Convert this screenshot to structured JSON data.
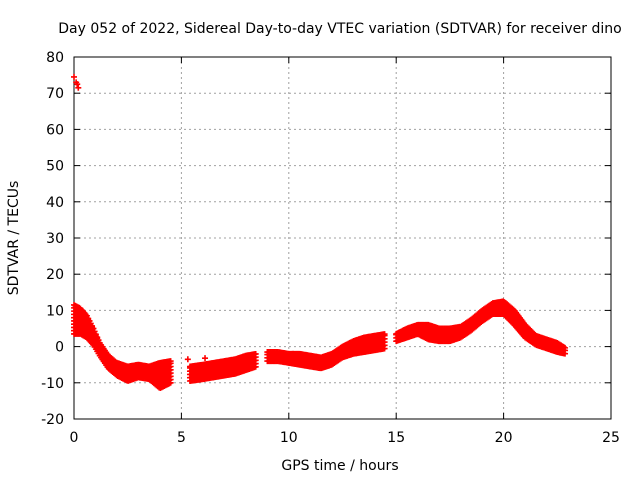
{
  "chart_data": {
    "type": "scatter",
    "title": "Day 052 of 2022, Sidereal Day-to-day VTEC variation (SDTVAR) for receiver dino",
    "xlabel": "GPS time / hours",
    "ylabel": "SDTVAR / TECUs",
    "xlim": [
      0,
      25
    ],
    "ylim": [
      -20,
      80
    ],
    "x_ticks": [
      "0",
      "5",
      "10",
      "15",
      "20",
      "25"
    ],
    "y_ticks": [
      "-20",
      "-10",
      "0",
      "10",
      "20",
      "30",
      "40",
      "50",
      "60",
      "70",
      "80"
    ],
    "grid": true,
    "marker": "+",
    "series": [
      {
        "name": "SDTVAR",
        "color": "#ff0000",
        "outliers": [
          [
            0.0,
            74.5
          ],
          [
            0.1,
            73.0
          ],
          [
            0.2,
            71.5
          ],
          [
            0.15,
            72.5
          ],
          [
            5.3,
            -3.5
          ],
          [
            6.1,
            -3.2
          ]
        ],
        "bands": [
          {
            "x": [
              0.0,
              0.3,
              0.6,
              0.9,
              1.2,
              1.6,
              2.0,
              2.5,
              3.0,
              3.5,
              4.0,
              4.5
            ],
            "top": [
              11.5,
              10.5,
              8.5,
              5.0,
              1.0,
              -2.5,
              -4.5,
              -5.5,
              -5.0,
              -5.5,
              -4.5,
              -4.0
            ],
            "bottom": [
              3.5,
              3.5,
              2.5,
              0.5,
              -2.5,
              -6.0,
              -8.0,
              -9.5,
              -8.5,
              -9.0,
              -11.5,
              -10.0
            ]
          },
          {
            "x": [
              5.4,
              6.0,
              6.5,
              7.0,
              7.5,
              8.0,
              8.5
            ],
            "top": [
              -5.5,
              -5.0,
              -4.5,
              -4.0,
              -3.5,
              -2.5,
              -2.0
            ],
            "bottom": [
              -9.5,
              -9.0,
              -8.5,
              -8.0,
              -7.5,
              -6.5,
              -5.5
            ]
          },
          {
            "x": [
              9.0,
              9.5,
              10.0,
              10.5,
              11.0,
              11.5,
              12.0,
              12.5,
              13.0,
              13.5,
              14.0,
              14.5
            ],
            "top": [
              -1.5,
              -1.5,
              -2.0,
              -2.0,
              -2.5,
              -3.0,
              -2.0,
              0.0,
              1.5,
              2.5,
              3.0,
              3.5
            ],
            "bottom": [
              -4.0,
              -4.0,
              -4.5,
              -5.0,
              -5.5,
              -6.0,
              -5.0,
              -3.0,
              -2.0,
              -1.5,
              -1.0,
              -0.5
            ]
          },
          {
            "x": [
              15.0,
              15.5,
              16.0,
              16.5,
              17.0,
              17.5,
              18.0,
              18.5,
              19.0,
              19.5,
              20.0,
              20.5,
              21.0,
              21.5,
              22.0,
              22.5,
              22.9
            ],
            "top": [
              3.5,
              5.0,
              6.0,
              6.0,
              5.0,
              5.0,
              5.5,
              7.5,
              10.0,
              12.0,
              12.5,
              10.0,
              6.0,
              3.0,
              2.0,
              1.0,
              -0.5
            ],
            "bottom": [
              1.5,
              2.5,
              3.5,
              2.0,
              1.5,
              1.5,
              2.5,
              4.5,
              7.0,
              9.0,
              9.0,
              6.0,
              2.5,
              0.5,
              -0.5,
              -1.5,
              -2.0
            ]
          }
        ]
      }
    ]
  }
}
